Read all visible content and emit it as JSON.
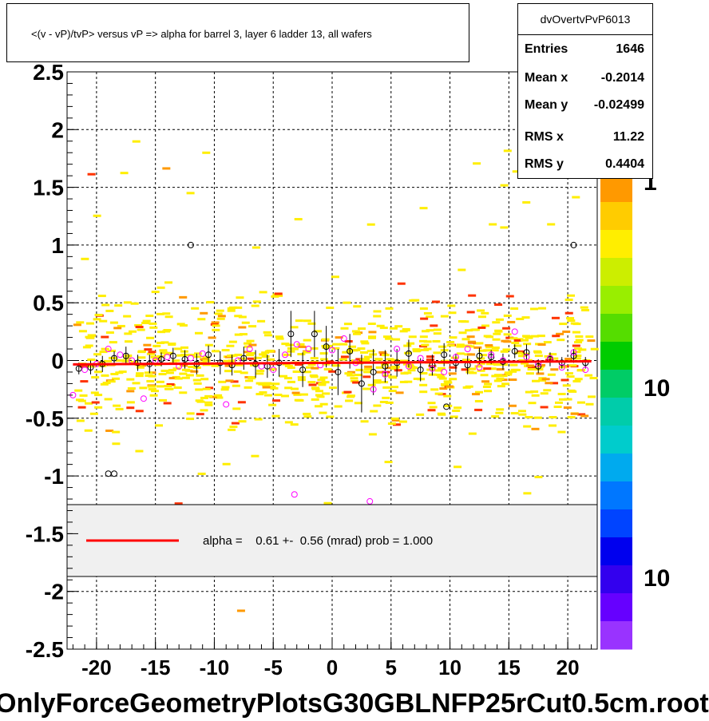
{
  "header": {
    "title": "<(v - vP)/tvP> versus   vP => alpha for barrel 3, layer 6 ladder 13, all wafers"
  },
  "stats": {
    "name": "dvOvertvPvP6013",
    "rows": [
      {
        "key": "Entries",
        "value": "1646"
      },
      {
        "key": "Mean x",
        "value": "-0.2014"
      },
      {
        "key": "Mean y",
        "value": "-0.02499"
      },
      {
        "key": "RMS x",
        "value": "11.22"
      },
      {
        "key": "RMS y",
        "value": "0.4404"
      }
    ]
  },
  "legend": {
    "text": "alpha =    0.61 +-  0.56 (mrad) prob = 1.000",
    "line_color": "#ff0000"
  },
  "footer": {
    "text": "OnlyForceGeometryPlotsG30GBLNFP25rCut0.5cm.root"
  },
  "palette": {
    "labels": [
      "1",
      "10",
      "10"
    ],
    "colors": [
      "#ff9900",
      "#ffcc00",
      "#ffee00",
      "#ccee00",
      "#99ee00",
      "#55dd00",
      "#00cc00",
      "#00cc66",
      "#00ccaa",
      "#00cccc",
      "#00aaee",
      "#0077ff",
      "#0044ff",
      "#0000ee",
      "#3300ee",
      "#6600ff",
      "#9933ff"
    ]
  },
  "chart_data": {
    "type": "scatter",
    "title": "<(v - vP)/tvP> versus   vP => alpha for barrel 3, layer 6 ladder 13, all wafers",
    "xlabel": "",
    "ylabel": "",
    "xlim": [
      -22.5,
      22.5
    ],
    "ylim": [
      -2.5,
      2.5
    ],
    "x_ticks": [
      -20,
      -15,
      -10,
      -5,
      0,
      5,
      10,
      15,
      20
    ],
    "x_tick_labels": [
      "-20",
      "-15",
      "-10",
      "-5",
      "0",
      "5",
      "10",
      "15",
      "20"
    ],
    "y_ticks": [
      -2.5,
      -2,
      -1.5,
      -1,
      -0.5,
      0,
      0.5,
      1,
      1.5,
      2,
      2.5
    ],
    "y_tick_labels": [
      "-2.5",
      "-2",
      "-1.5",
      "-1",
      "-0.5",
      "0",
      "0.5",
      "1",
      "1.5",
      "2",
      "2.5"
    ],
    "grid": true,
    "fit_line": {
      "slope": 0.00061,
      "intercept": -0.02,
      "color": "#ff0000"
    },
    "profile_black": [
      [
        -21.5,
        -0.07,
        0.05
      ],
      [
        -20.5,
        -0.06,
        0.06
      ],
      [
        -19.5,
        -0.03,
        0.07
      ],
      [
        -18.5,
        0.02,
        0.06
      ],
      [
        -17.5,
        0.04,
        0.08
      ],
      [
        -16.5,
        -0.02,
        0.07
      ],
      [
        -15.5,
        -0.03,
        0.08
      ],
      [
        -14.5,
        0.01,
        0.06
      ],
      [
        -13.5,
        0.04,
        0.07
      ],
      [
        -12.5,
        0.01,
        0.08
      ],
      [
        -11.5,
        -0.03,
        0.09
      ],
      [
        -10.5,
        0.05,
        0.08
      ],
      [
        -9.5,
        -0.02,
        0.1
      ],
      [
        -8.5,
        -0.04,
        0.09
      ],
      [
        -7.5,
        0.02,
        0.1
      ],
      [
        -6.5,
        -0.03,
        0.12
      ],
      [
        -5.5,
        -0.05,
        0.1
      ],
      [
        -4.5,
        -0.02,
        0.12
      ],
      [
        -3.5,
        0.23,
        0.2
      ],
      [
        -2.5,
        -0.08,
        0.15
      ],
      [
        -1.5,
        0.23,
        0.2
      ],
      [
        -0.5,
        0.12,
        0.18
      ],
      [
        0.5,
        -0.1,
        0.2
      ],
      [
        1.5,
        0.08,
        0.15
      ],
      [
        2.5,
        -0.2,
        0.25
      ],
      [
        3.5,
        -0.1,
        0.2
      ],
      [
        4.5,
        -0.05,
        0.14
      ],
      [
        5.5,
        -0.02,
        0.12
      ],
      [
        6.5,
        0.06,
        0.12
      ],
      [
        7.5,
        -0.08,
        0.1
      ],
      [
        8.5,
        -0.04,
        0.09
      ],
      [
        9.5,
        0.05,
        0.1
      ],
      [
        10.5,
        -0.02,
        0.08
      ],
      [
        11.5,
        -0.04,
        0.08
      ],
      [
        12.5,
        0.04,
        0.07
      ],
      [
        13.5,
        0.03,
        0.06
      ],
      [
        14.5,
        -0.01,
        0.07
      ],
      [
        15.5,
        0.08,
        0.06
      ],
      [
        16.5,
        0.07,
        0.07
      ],
      [
        17.5,
        -0.05,
        0.06
      ],
      [
        18.5,
        0.01,
        0.06
      ],
      [
        19.5,
        -0.02,
        0.05
      ],
      [
        20.5,
        0.04,
        0.06
      ],
      [
        21.5,
        -0.02,
        0.05
      ],
      [
        -19,
        -0.98,
        0
      ],
      [
        -18.5,
        -0.98,
        0
      ],
      [
        -12,
        1.0,
        0
      ],
      [
        20.5,
        1.0,
        0
      ],
      [
        9.7,
        -0.4,
        0
      ]
    ],
    "profile_magenta": [
      [
        -22,
        -0.3
      ],
      [
        -21,
        -0.08
      ],
      [
        -20,
        -0.03
      ],
      [
        -19,
        0.1
      ],
      [
        -18,
        0.05
      ],
      [
        -17,
        0.0
      ],
      [
        -16,
        -0.33
      ],
      [
        -15,
        0.0
      ],
      [
        -14,
        0.03
      ],
      [
        -13,
        -0.05
      ],
      [
        -12,
        0.02
      ],
      [
        -11,
        0.06
      ],
      [
        -9,
        -0.38
      ],
      [
        -8,
        0.0
      ],
      [
        -7,
        0.1
      ],
      [
        -6,
        -0.05
      ],
      [
        -5,
        -0.08
      ],
      [
        -4,
        0.05
      ],
      [
        -3.2,
        -1.16
      ],
      [
        -3,
        0.14
      ],
      [
        -2,
        0.1
      ],
      [
        -1,
        -0.04
      ],
      [
        0,
        0.09
      ],
      [
        1,
        0.19
      ],
      [
        2,
        -0.02
      ],
      [
        3.2,
        -1.22
      ],
      [
        3.5,
        -0.25
      ],
      [
        4.5,
        -0.12
      ],
      [
        5.5,
        0.1
      ],
      [
        6.5,
        -0.05
      ],
      [
        7.5,
        0.02
      ],
      [
        8.5,
        -0.07
      ],
      [
        9.5,
        -0.1
      ],
      [
        10.5,
        0.03
      ],
      [
        11.5,
        0.1
      ],
      [
        12.5,
        -0.06
      ],
      [
        13.5,
        0.05
      ],
      [
        14.5,
        0.0
      ],
      [
        15.5,
        0.25
      ],
      [
        16.5,
        0.03
      ],
      [
        17.5,
        -0.03
      ],
      [
        18.5,
        0.02
      ],
      [
        19.5,
        -0.06
      ],
      [
        20.5,
        0.07
      ],
      [
        21.5,
        -0.08
      ]
    ]
  }
}
